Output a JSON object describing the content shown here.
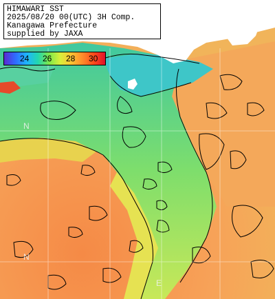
{
  "title_box": {
    "line1": "HIMAWARI SST",
    "line2": "2025/08/20 00(UTC) 3H Comp.",
    "line3": "Kanagawa Prefecture",
    "line4": "supplied by JAXA"
  },
  "color_scale": {
    "labels": [
      "24",
      "26",
      "28",
      "30"
    ],
    "colors": [
      "#5a2ad0",
      "#2f6bff",
      "#1fb4ff",
      "#22d6b0",
      "#7ee84a",
      "#d9ef3a",
      "#ffc233",
      "#ff8a2a",
      "#ff4a1a",
      "#e0102a"
    ]
  },
  "grid_labels": {
    "lat_left": "N",
    "lon_bottom": "E"
  },
  "colors": {
    "land": "#ffffff",
    "cool_water": "#3ec8c8",
    "green_water": "#8fe070",
    "yellow_water": "#e8e050",
    "warm_water": "#f7a45a",
    "hot_water": "#f48a45",
    "contour": "#000000",
    "grid": "#ffffff"
  }
}
